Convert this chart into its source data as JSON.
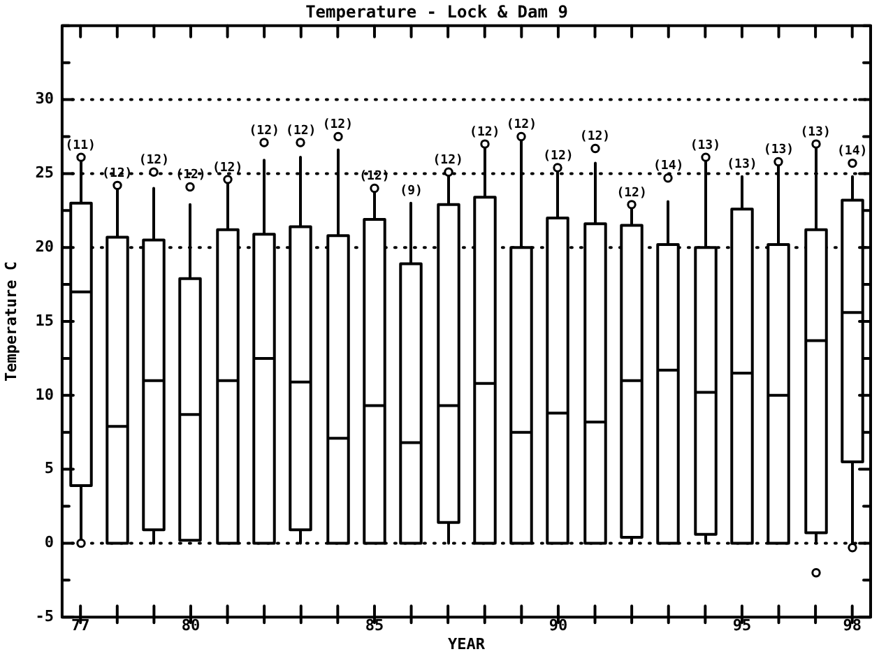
{
  "chart_data": {
    "type": "box",
    "title": "Temperature - Lock & Dam 9",
    "xlabel": "YEAR",
    "ylabel": "Temperature C",
    "color": "#ffffff",
    "categories": [
      "77",
      null,
      null,
      "80",
      null,
      null,
      null,
      null,
      "85",
      null,
      null,
      null,
      null,
      "90",
      null,
      null,
      null,
      null,
      "95",
      null,
      null,
      "98"
    ],
    "boxes": [
      {
        "low": 0,
        "q1": 3.9,
        "median": 17,
        "q3": 23,
        "high": 26.1,
        "outliers": [
          26.1,
          0
        ]
      },
      {
        "low": 0,
        "q1": 0,
        "median": 7.9,
        "q3": 20.7,
        "high": 24.2,
        "outliers": [
          24.2
        ]
      },
      {
        "low": 0,
        "q1": 0.9,
        "median": 11,
        "q3": 20.5,
        "high": 24,
        "outliers": [
          25.1
        ]
      },
      {
        "low": 0.2,
        "q1": 0.2,
        "median": 8.7,
        "q3": 17.9,
        "high": 22.9,
        "outliers": [
          24.1
        ]
      },
      {
        "low": 0,
        "q1": 0,
        "median": 11,
        "q3": 21.2,
        "high": 24.6,
        "outliers": [
          24.6
        ]
      },
      {
        "low": 0,
        "q1": 0,
        "median": 12.5,
        "q3": 20.9,
        "high": 25.9,
        "outliers": [
          27.1
        ]
      },
      {
        "low": 0,
        "q1": 0.9,
        "median": 10.9,
        "q3": 21.4,
        "high": 26.1,
        "outliers": [
          27.1
        ]
      },
      {
        "low": 0,
        "q1": 0,
        "median": 7.1,
        "q3": 20.8,
        "high": 26.6,
        "outliers": [
          27.5
        ]
      },
      {
        "low": 0,
        "q1": 0,
        "median": 9.3,
        "q3": 21.9,
        "high": 24,
        "outliers": [
          24
        ]
      },
      {
        "low": 0,
        "q1": 0,
        "median": 6.8,
        "q3": 18.9,
        "high": 23
      },
      {
        "low": 0,
        "q1": 1.4,
        "median": 9.3,
        "q3": 22.9,
        "high": 25.1,
        "outliers": [
          25.1
        ]
      },
      {
        "low": 0,
        "q1": 0,
        "median": 10.8,
        "q3": 23.4,
        "high": 27,
        "outliers": [
          27
        ]
      },
      {
        "low": 0,
        "q1": 0,
        "median": 7.5,
        "q3": 20,
        "high": 27.5,
        "outliers": [
          27.5
        ]
      },
      {
        "low": 0,
        "q1": 0,
        "median": 8.8,
        "q3": 22,
        "high": 25.4,
        "outliers": [
          25.4
        ]
      },
      {
        "low": 0,
        "q1": 0,
        "median": 8.2,
        "q3": 21.6,
        "high": 25.7,
        "outliers": [
          26.7
        ]
      },
      {
        "low": 0,
        "q1": 0.4,
        "median": 11,
        "q3": 21.5,
        "high": 22.9,
        "outliers": [
          22.9
        ]
      },
      {
        "low": 0,
        "q1": 0,
        "median": 11.7,
        "q3": 20.2,
        "high": 23.1,
        "outliers": [
          24.7
        ]
      },
      {
        "low": 0,
        "q1": 0.6,
        "median": 10.2,
        "q3": 20,
        "high": 26.1,
        "outliers": [
          26.1
        ]
      },
      {
        "low": 0,
        "q1": 0,
        "median": 11.5,
        "q3": 22.6,
        "high": 24.8
      },
      {
        "low": 0,
        "q1": 0,
        "median": 10,
        "q3": 20.2,
        "high": 25.8,
        "outliers": [
          25.8
        ]
      },
      {
        "low": 0,
        "q1": 0.7,
        "median": 13.7,
        "q3": 21.2,
        "high": 27,
        "outliers": [
          27,
          -2
        ]
      },
      {
        "low": -0.3,
        "q1": 5.5,
        "median": 15.6,
        "q3": 23.2,
        "high": 24.8,
        "outliers": [
          25.7,
          -0.3
        ]
      }
    ],
    "ylim": [
      -5,
      35
    ],
    "yticks": [
      -5,
      {
        "value": -2.5,
        "label": null
      },
      0,
      {
        "value": 2.5,
        "label": null
      },
      5,
      {
        "value": 7.5,
        "label": null
      },
      10,
      {
        "value": 12.5,
        "label": null
      },
      15,
      {
        "value": 17.5,
        "label": null
      },
      20,
      {
        "value": 22.5,
        "label": null
      },
      25,
      {
        "value": 27.5,
        "label": null
      },
      30,
      {
        "value": 32.5,
        "label": null
      },
      {
        "value": 35,
        "label": null
      }
    ],
    "grid": false,
    "legend": false,
    "ref_lines": [
      {
        "axis": "y",
        "value": 0,
        "line_style": "dotted"
      },
      {
        "axis": "y",
        "value": 20,
        "line_style": "dotted"
      },
      {
        "axis": "y",
        "value": 25,
        "line_style": "dotted"
      },
      {
        "axis": "y",
        "value": 30,
        "line_style": "dotted"
      }
    ],
    "annotations": [
      "(11)",
      "(12)",
      "(12)",
      "(12)",
      "(12)",
      "(12)",
      "(12)",
      "(12)",
      "(12)",
      "(9)",
      "(12)",
      "(12)",
      "(12)",
      "(12)",
      "(12)",
      "(12)",
      "(14)",
      "(13)",
      "(13)",
      "(13)",
      "(13)",
      "(14)"
    ]
  }
}
